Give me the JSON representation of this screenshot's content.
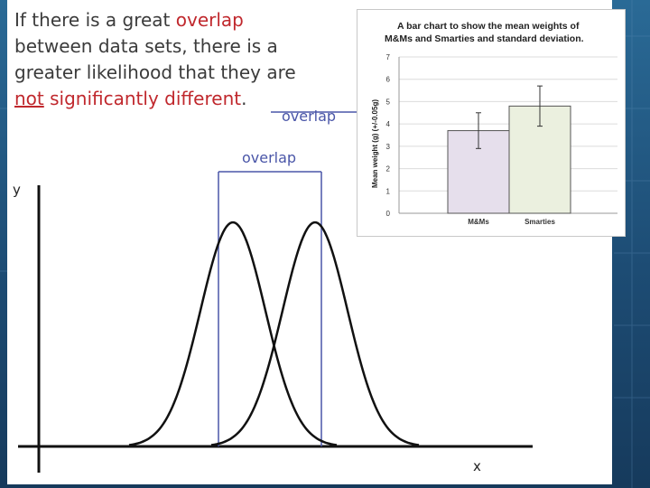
{
  "heading": {
    "part1": "If there is a great ",
    "part2": "overlap",
    "part3": " between data sets, there is a greater likelihood that they are ",
    "part4": "not",
    "part5": " ",
    "part6": "significantly different",
    "part7": "."
  },
  "annotations": {
    "overlap_right": "overlap",
    "overlap_top": "overlap",
    "y_axis": "y",
    "x_axis": "x"
  },
  "colors": {
    "bar_mms": "#e6dfec",
    "bar_smarties": "#ebf0df",
    "overlap_lines": "#4a56a8",
    "highlight_red": "#c0282d"
  },
  "chart_data": [
    {
      "type": "bar",
      "title": "A bar chart to show the mean weights of M&Ms and Smarties and standard deviation.",
      "categories": [
        "M&Ms",
        "Smarties"
      ],
      "values": [
        3.7,
        4.8
      ],
      "error_bars": [
        0.8,
        0.9
      ],
      "xlabel": "",
      "ylabel": "Mean weight (g) (+/-0.05g)",
      "ylim": [
        0,
        7
      ],
      "yticks": [
        "0",
        "1",
        "2",
        "3",
        "4",
        "5",
        "6",
        "7"
      ],
      "grid": true
    },
    {
      "type": "line",
      "xlabel": "x",
      "ylabel": "y",
      "series": [
        {
          "mean": 258,
          "peak": 1
        },
        {
          "mean": 349,
          "peak": 1
        }
      ],
      "overlap_region": [
        242,
        356
      ]
    }
  ]
}
